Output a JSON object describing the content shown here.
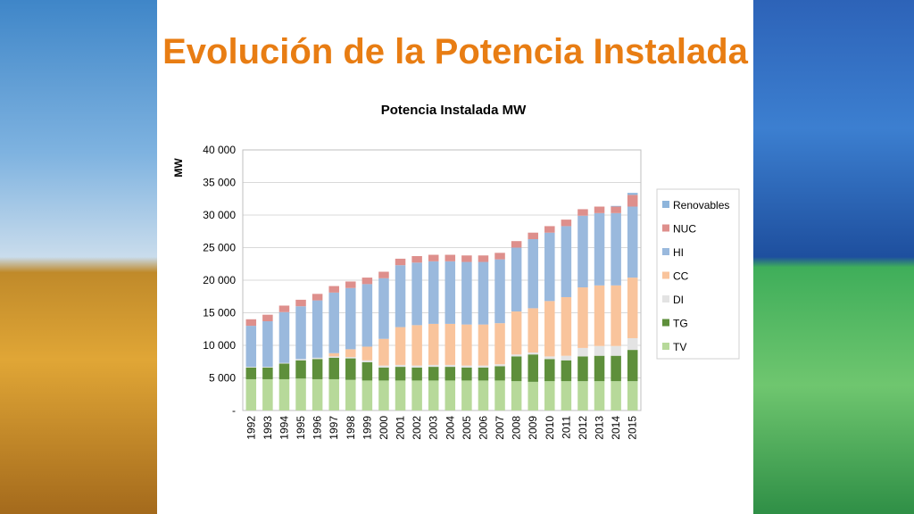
{
  "slide": {
    "title": "Evolución de la Potencia Instalada"
  },
  "chart_data": {
    "type": "bar",
    "stacked": true,
    "title": "Potencia Instalada MW",
    "ylabel": "MW",
    "xlabel": "",
    "ylim": [
      0,
      40000
    ],
    "yticks": [
      0,
      5000,
      10000,
      15000,
      20000,
      25000,
      30000,
      35000,
      40000
    ],
    "ytick_labels": [
      "-",
      "5 000",
      "10 000",
      "15 000",
      "20 000",
      "25 000",
      "30 000",
      "35 000",
      "40 000"
    ],
    "grid": true,
    "legend_position": "right",
    "categories": [
      "1992",
      "1993",
      "1994",
      "1995",
      "1996",
      "1997",
      "1998",
      "1999",
      "2000",
      "2001",
      "2002",
      "2003",
      "2004",
      "2005",
      "2006",
      "2007",
      "2008",
      "2009",
      "2010",
      "2011",
      "2012",
      "2013",
      "2014",
      "2015"
    ],
    "series": [
      {
        "name": "TV",
        "color": "#b7d99a",
        "values": [
          4800,
          4800,
          4800,
          4900,
          4800,
          4800,
          4700,
          4600,
          4600,
          4600,
          4600,
          4600,
          4600,
          4600,
          4600,
          4600,
          4500,
          4400,
          4500,
          4500,
          4500,
          4500,
          4500,
          4500
        ]
      },
      {
        "name": "TG",
        "color": "#5e8f3b",
        "values": [
          1800,
          1800,
          2400,
          2800,
          3100,
          3300,
          3300,
          2800,
          2000,
          2100,
          2000,
          2100,
          2100,
          2000,
          2000,
          2200,
          3800,
          4200,
          3400,
          3200,
          3800,
          3900,
          3900,
          4800
        ]
      },
      {
        "name": "DI",
        "color": "#e3e3e3",
        "values": [
          100,
          100,
          100,
          200,
          200,
          200,
          200,
          300,
          300,
          300,
          300,
          300,
          300,
          300,
          300,
          300,
          300,
          300,
          400,
          700,
          1300,
          1500,
          1500,
          1800
        ]
      },
      {
        "name": "CC",
        "color": "#f9c49c",
        "values": [
          0,
          0,
          0,
          0,
          0,
          500,
          1200,
          2100,
          4100,
          5800,
          6200,
          6300,
          6300,
          6300,
          6300,
          6300,
          6600,
          6800,
          8500,
          9000,
          9300,
          9300,
          9300,
          9300
        ]
      },
      {
        "name": "HI",
        "color": "#9ab9dd",
        "values": [
          6300,
          7000,
          7800,
          8100,
          8800,
          9300,
          9400,
          9600,
          9300,
          9500,
          9600,
          9600,
          9600,
          9600,
          9600,
          9800,
          9800,
          10600,
          10500,
          10900,
          11000,
          11100,
          11100,
          10900
        ]
      },
      {
        "name": "NUC",
        "color": "#de8f8c",
        "values": [
          1000,
          1000,
          1000,
          1000,
          1000,
          1000,
          1000,
          1000,
          1000,
          1000,
          1000,
          1000,
          1000,
          1000,
          1000,
          1000,
          1000,
          1000,
          1000,
          1000,
          1000,
          1000,
          1000,
          1800
        ]
      },
      {
        "name": "Renovables",
        "color": "#8eb5db",
        "values": [
          0,
          0,
          0,
          0,
          0,
          0,
          0,
          0,
          0,
          0,
          0,
          0,
          0,
          0,
          0,
          0,
          0,
          0,
          0,
          0,
          0,
          0,
          100,
          300
        ]
      }
    ]
  }
}
